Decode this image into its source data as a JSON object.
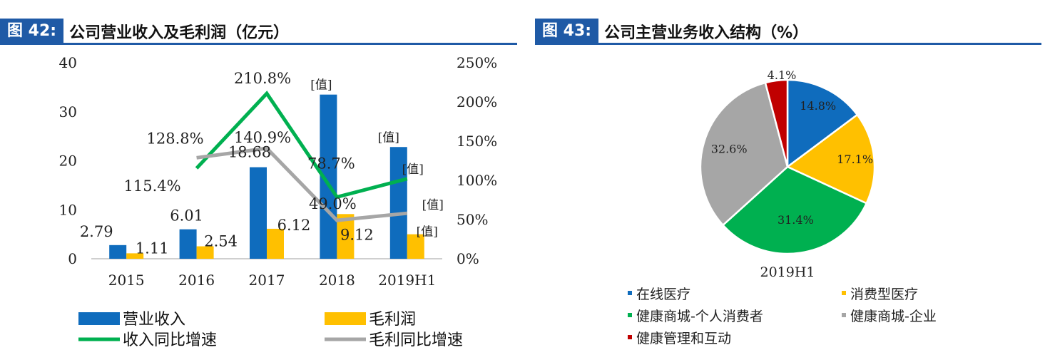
{
  "left": {
    "fig_label": "图 42:",
    "title": "公司营业收入及毛利润（亿元）"
  },
  "right": {
    "fig_label": "图 43:",
    "title": "公司主营业务收入结构（%）"
  },
  "chart_data": [
    {
      "type": "bar",
      "categories": [
        "2015",
        "2016",
        "2017",
        "2018",
        "2019H1"
      ],
      "y_left": {
        "lim": [
          0,
          40
        ],
        "ticks": [
          "0",
          "10",
          "20",
          "30",
          "40"
        ]
      },
      "y_right": {
        "lim": [
          0,
          250
        ],
        "ticks": [
          "0%",
          "50%",
          "100%",
          "150%",
          "200%",
          "250%"
        ]
      },
      "series": [
        {
          "name": "营业收入",
          "kind": "bar",
          "axis": "left",
          "color": "#0f6cbd",
          "values": [
            2.79,
            6.01,
            18.68,
            33.5,
            22.8
          ],
          "labels": [
            "2.79",
            "6.01",
            "18.68",
            "[值]",
            "[值]"
          ]
        },
        {
          "name": "毛利润",
          "kind": "bar",
          "axis": "left",
          "color": "#ffc000",
          "values": [
            1.11,
            2.54,
            6.12,
            9.12,
            5.0
          ],
          "labels": [
            "1.11",
            "2.54",
            "6.12",
            "9.12",
            "[值]"
          ]
        },
        {
          "name": "收入同比增速",
          "kind": "line",
          "axis": "right",
          "color": "#00b050",
          "values": [
            null,
            115.4,
            210.8,
            78.7,
            102
          ],
          "labels": [
            "",
            "115.4%",
            "210.8%",
            "78.7%",
            "[值]"
          ]
        },
        {
          "name": "毛利同比增速",
          "kind": "line",
          "axis": "right",
          "color": "#a6a6a6",
          "values": [
            null,
            128.8,
            140.9,
            49.0,
            58
          ],
          "labels": [
            "",
            "128.8%",
            "140.9%",
            "49.0%",
            "[值]"
          ]
        }
      ],
      "legend": "bottom"
    },
    {
      "type": "pie",
      "xlabel": "2019H1",
      "slices": [
        {
          "name": "在线医疗",
          "value": 14.8,
          "label": "14.8%",
          "color": "#0f6cbd"
        },
        {
          "name": "消费型医疗",
          "value": 17.1,
          "label": "17.1%",
          "color": "#ffc000"
        },
        {
          "name": "健康商城-个人消费者",
          "value": 31.4,
          "label": "31.4%",
          "color": "#00b050"
        },
        {
          "name": "健康商城-企业",
          "value": 32.6,
          "label": "32.6%",
          "color": "#a6a6a6"
        },
        {
          "name": "健康管理和互动",
          "value": 4.1,
          "label": "4.1%",
          "color": "#c00000"
        }
      ],
      "legend": "bottom"
    }
  ]
}
